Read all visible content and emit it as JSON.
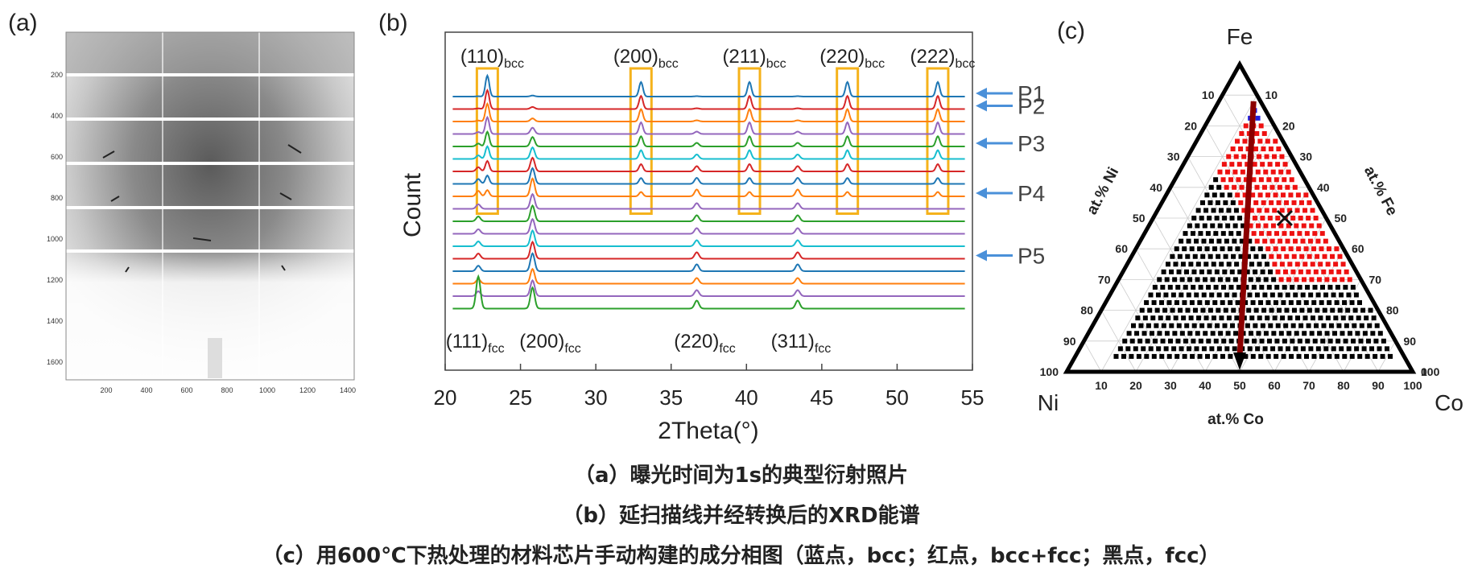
{
  "panel_a": {
    "label": "(a)",
    "y_ticks": [
      "200",
      "400",
      "600",
      "800",
      "1000",
      "1200",
      "1400",
      "1600"
    ],
    "x_ticks": [
      "200",
      "400",
      "600",
      "800",
      "1000",
      "1200",
      "1400"
    ]
  },
  "chart_data": [
    {
      "type": "line",
      "panel": "(b)",
      "xlabel": "2Theta(°)",
      "ylabel": "Count",
      "xlim": [
        20,
        55
      ],
      "x_ticks": [
        "20",
        "25",
        "30",
        "35",
        "40",
        "45",
        "50",
        "55"
      ],
      "bcc_peaks": [
        {
          "label": "(110)",
          "sub": "bcc",
          "x": 22.8
        },
        {
          "label": "(200)",
          "sub": "bcc",
          "x": 33.0
        },
        {
          "label": "(211)",
          "sub": "bcc",
          "x": 40.2
        },
        {
          "label": "(220)",
          "sub": "bcc",
          "x": 46.7
        },
        {
          "label": "(222)",
          "sub": "bcc",
          "x": 52.7
        }
      ],
      "fcc_peaks": [
        {
          "label": "(111)",
          "sub": "fcc",
          "x": 22.2
        },
        {
          "label": "(200)",
          "sub": "fcc",
          "x": 25.8
        },
        {
          "label": "(220)",
          "sub": "fcc",
          "x": 36.7
        },
        {
          "label": "(311)",
          "sub": "fcc",
          "x": 43.4
        }
      ],
      "patterns": [
        {
          "color": "#1f77b4",
          "bcc": 1.0,
          "fcc": 0.05,
          "fcc_shift": 0.0
        },
        {
          "color": "#d62728",
          "bcc": 0.9,
          "fcc": 0.1,
          "fcc_shift": 0.0
        },
        {
          "color": "#ff7f0e",
          "bcc": 0.85,
          "fcc": 0.15,
          "fcc_shift": 0.0
        },
        {
          "color": "#9467bd",
          "bcc": 0.8,
          "fcc": 0.3,
          "fcc_shift": 0.0
        },
        {
          "color": "#2ca02c",
          "bcc": 0.7,
          "fcc": 0.45,
          "fcc_shift": 0.0
        },
        {
          "color": "#17becf",
          "bcc": 0.6,
          "fcc": 0.55,
          "fcc_shift": 0.0
        },
        {
          "color": "#d62728",
          "bcc": 0.5,
          "fcc": 0.65,
          "fcc_shift": 0.0
        },
        {
          "color": "#1f77b4",
          "bcc": 0.4,
          "fcc": 0.75,
          "fcc_shift": 0.0
        },
        {
          "color": "#ff7f0e",
          "bcc": 0.3,
          "fcc": 0.85,
          "fcc_shift": 0.0
        },
        {
          "color": "#9467bd",
          "bcc": 0.0,
          "fcc": 0.7,
          "fcc_shift": 0.0
        },
        {
          "color": "#2ca02c",
          "bcc": 0.0,
          "fcc": 0.75,
          "fcc_shift": 0.0
        },
        {
          "color": "#9467bd",
          "bcc": 0.0,
          "fcc": 0.7,
          "fcc_shift": 0.0
        },
        {
          "color": "#17becf",
          "bcc": 0.0,
          "fcc": 0.75,
          "fcc_shift": 0.0
        },
        {
          "color": "#d62728",
          "bcc": 0.0,
          "fcc": 0.8,
          "fcc_shift": 0.0
        },
        {
          "color": "#1f77b4",
          "bcc": 0.0,
          "fcc": 0.85,
          "fcc_shift": 0.0
        },
        {
          "color": "#ff7f0e",
          "bcc": 0.0,
          "fcc": 0.7,
          "fcc_shift": 0.0
        },
        {
          "color": "#9467bd",
          "bcc": 0.0,
          "fcc": 0.75,
          "fcc_shift": 0.0
        },
        {
          "color": "#2ca02c",
          "bcc": 0.0,
          "fcc": 1.0,
          "fcc_shift": 0.0
        }
      ],
      "markers": [
        {
          "label": "P1",
          "pattern": 0
        },
        {
          "label": "P2",
          "pattern": 1
        },
        {
          "label": "P3",
          "pattern": 4
        },
        {
          "label": "P4",
          "pattern": 8
        },
        {
          "label": "P5",
          "pattern": 13
        }
      ]
    },
    {
      "type": "scatter",
      "panel": "(c)",
      "corners": {
        "top": "Fe",
        "left": "Ni",
        "right": "Co"
      },
      "axis_labels": {
        "left": "at.% Ni",
        "right": "at.% Fe",
        "bottom": "at.% Co"
      },
      "ticks": [
        "10",
        "20",
        "30",
        "40",
        "50",
        "60",
        "70",
        "80",
        "90",
        "100"
      ],
      "zero_label": "0",
      "colors": {
        "bcc": "#2222dd",
        "bcc+fcc": "#ee1111",
        "fcc": "#000000",
        "arrow": "#8b0000"
      }
    }
  ],
  "captions": [
    "（a）曝光时间为1s的典型衍射照片",
    "（b）延扫描线并经转换后的XRD能谱",
    "（c）用600℃下热处理的材料芯片手动构建的成分相图（蓝点，bcc；红点，bcc+fcc；黑点，fcc）"
  ]
}
